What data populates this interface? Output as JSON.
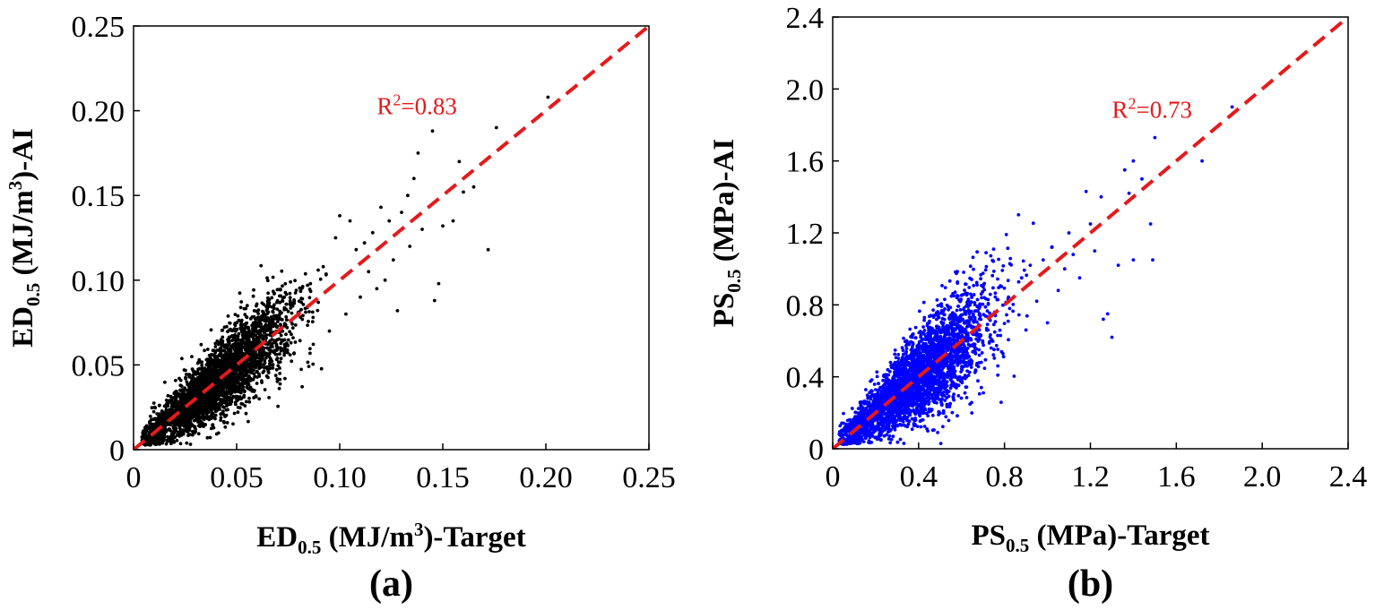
{
  "chart_data": [
    {
      "type": "scatter",
      "panel_label": "(a)",
      "color": "#000000",
      "xlim": [
        0,
        0.25
      ],
      "ylim": [
        0,
        0.25
      ],
      "xticks": [
        "0",
        "0.05",
        "0.10",
        "0.15",
        "0.20",
        "0.25"
      ],
      "yticks": [
        "0",
        "0.05",
        "0.10",
        "0.15",
        "0.20",
        "0.25"
      ],
      "xtick_values": [
        0,
        0.05,
        0.1,
        0.15,
        0.2,
        0.25
      ],
      "ytick_values": [
        0,
        0.05,
        0.1,
        0.15,
        0.2,
        0.25
      ],
      "xlabel": {
        "main": "ED",
        "sub": "0.5",
        "unit": " (MJ/m",
        "sup": "3",
        "tail": ")-Target"
      },
      "ylabel": {
        "main": "ED",
        "sub": "0.5",
        "unit": " (MJ/m",
        "sup": "3",
        "tail": ")-AI"
      },
      "annotation": {
        "prefix": "R",
        "sup": "2",
        "text": "=0.83",
        "x": 0.118,
        "y": 0.198
      },
      "fit_line": {
        "from": [
          0,
          0
        ],
        "to": [
          0.25,
          0.25
        ],
        "color": "#e41a1c",
        "style": "dashed"
      },
      "cloud": {
        "count": 3200,
        "x_mean": 0.04,
        "x_sd": 0.018,
        "x_min": 0.004,
        "x_max": 0.13,
        "noise_sd_ratio": 0.16,
        "seed": 11
      },
      "points": [
        [
          0.201,
          0.208
        ],
        [
          0.176,
          0.19
        ],
        [
          0.172,
          0.118
        ],
        [
          0.165,
          0.155
        ],
        [
          0.162,
          0.162
        ],
        [
          0.16,
          0.152
        ],
        [
          0.158,
          0.17
        ],
        [
          0.155,
          0.135
        ],
        [
          0.15,
          0.132
        ],
        [
          0.148,
          0.098
        ],
        [
          0.146,
          0.088
        ],
        [
          0.145,
          0.188
        ],
        [
          0.14,
          0.13
        ],
        [
          0.138,
          0.175
        ],
        [
          0.136,
          0.16
        ],
        [
          0.134,
          0.12
        ],
        [
          0.133,
          0.15
        ],
        [
          0.13,
          0.14
        ],
        [
          0.128,
          0.082
        ],
        [
          0.126,
          0.112
        ],
        [
          0.124,
          0.135
        ],
        [
          0.122,
          0.1
        ],
        [
          0.12,
          0.143
        ],
        [
          0.118,
          0.095
        ],
        [
          0.116,
          0.128
        ],
        [
          0.114,
          0.105
        ],
        [
          0.112,
          0.122
        ],
        [
          0.11,
          0.09
        ],
        [
          0.108,
          0.118
        ],
        [
          0.105,
          0.135
        ],
        [
          0.103,
          0.08
        ],
        [
          0.1,
          0.138
        ],
        [
          0.098,
          0.125
        ],
        [
          0.095,
          0.07
        ],
        [
          0.092,
          0.108
        ]
      ]
    },
    {
      "type": "scatter",
      "panel_label": "(b)",
      "color": "#0000ff",
      "xlim": [
        0,
        2.4
      ],
      "ylim": [
        0,
        2.4
      ],
      "xticks": [
        "0",
        "0.4",
        "0.8",
        "1.2",
        "1.6",
        "2.0",
        "2.4"
      ],
      "yticks": [
        "0",
        "0.4",
        "0.8",
        "1.2",
        "1.6",
        "2.0",
        "2.4"
      ],
      "xtick_values": [
        0,
        0.4,
        0.8,
        1.2,
        1.6,
        2.0,
        2.4
      ],
      "ytick_values": [
        0,
        0.4,
        0.8,
        1.2,
        1.6,
        2.0,
        2.4
      ],
      "xlabel": {
        "main": "PS",
        "sub": "0.5",
        "unit": " (MPa)-Target",
        "sup": "",
        "tail": ""
      },
      "ylabel": {
        "main": "PS",
        "sub": "0.5",
        "unit": " (MPa)-AI",
        "sup": "",
        "tail": ""
      },
      "annotation": {
        "prefix": "R",
        "sup": "2",
        "text": "=0.73",
        "x": 1.3,
        "y": 1.84
      },
      "fit_line": {
        "from": [
          0,
          0
        ],
        "to": [
          2.4,
          2.4
        ],
        "color": "#e41a1c",
        "style": "dashed"
      },
      "cloud": {
        "count": 3400,
        "x_mean": 0.38,
        "x_sd": 0.17,
        "x_min": 0.03,
        "x_max": 1.15,
        "noise_sd_ratio": 0.19,
        "seed": 23
      },
      "points": [
        [
          1.86,
          1.9
        ],
        [
          1.72,
          1.6
        ],
        [
          1.5,
          1.73
        ],
        [
          1.48,
          1.25
        ],
        [
          1.49,
          1.05
        ],
        [
          1.44,
          1.5
        ],
        [
          1.4,
          1.6
        ],
        [
          1.38,
          1.42
        ],
        [
          1.36,
          1.55
        ],
        [
          1.33,
          1.02
        ],
        [
          1.3,
          0.62
        ],
        [
          1.28,
          0.75
        ],
        [
          1.25,
          1.4
        ],
        [
          1.22,
          1.1
        ],
        [
          1.2,
          1.25
        ],
        [
          1.18,
          1.43
        ],
        [
          1.15,
          0.95
        ],
        [
          1.12,
          1.08
        ],
        [
          1.1,
          1.2
        ],
        [
          1.08,
          1.0
        ],
        [
          1.05,
          0.88
        ],
        [
          1.02,
          1.12
        ],
        [
          1.0,
          0.7
        ],
        [
          0.98,
          1.05
        ],
        [
          0.95,
          0.82
        ],
        [
          0.92,
          1.02
        ],
        [
          0.9,
          0.66
        ],
        [
          0.88,
          0.95
        ],
        [
          1.4,
          1.05
        ],
        [
          1.26,
          0.72
        ]
      ]
    }
  ]
}
